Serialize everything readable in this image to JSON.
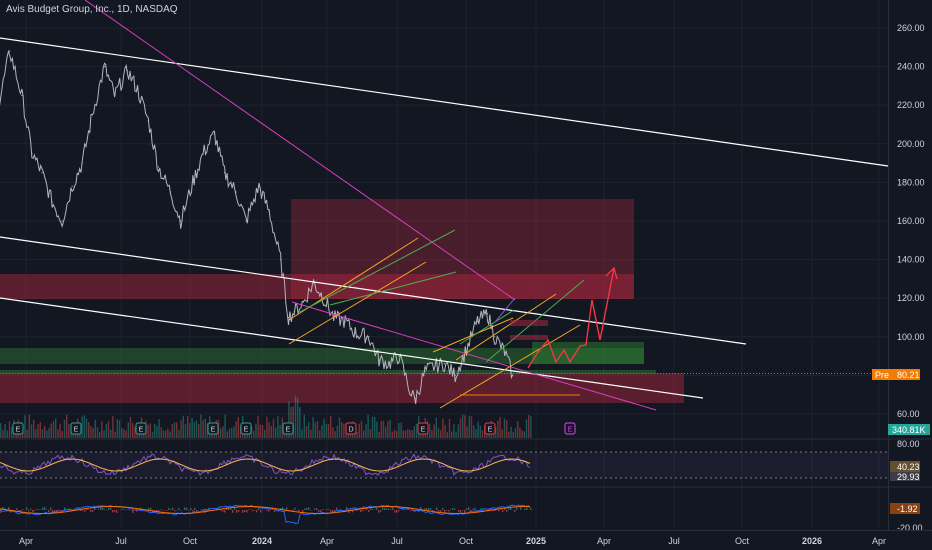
{
  "header": {
    "title": "Avis Budget Group, Inc., 1D, NASDAQ"
  },
  "chart_data": {
    "type": "line",
    "title": "Avis Budget Group, Inc., 1D, NASDAQ",
    "ylim": [
      50,
      265
    ],
    "y_ticks": [
      60,
      80,
      100,
      120,
      140,
      160,
      180,
      200,
      220,
      240,
      260
    ],
    "y_tick_labels": [
      "60.00",
      "80.00",
      "100.00",
      "120.00",
      "140.00",
      "160.00",
      "180.00",
      "200.00",
      "220.00",
      "240.00",
      "260.00"
    ],
    "x_tick_labels": [
      "Apr",
      "Jul",
      "Oct",
      "2024",
      "Apr",
      "Jul",
      "Oct",
      "2025",
      "Apr",
      "Jul",
      "Oct",
      "2026",
      "Apr"
    ],
    "series": [
      {
        "x": [
          "2023-01-02",
          "2023-01-20",
          "2023-02-06",
          "2023-02-20",
          "2023-03-06",
          "2023-03-20",
          "2023-04-03",
          "2023-04-17",
          "2023-05-01",
          "2023-05-15",
          "2023-06-01",
          "2023-06-15",
          "2023-07-03",
          "2023-07-17",
          "2023-08-01",
          "2023-08-15",
          "2023-09-01",
          "2023-09-15",
          "2023-10-02",
          "2023-10-16",
          "2023-11-01",
          "2023-11-15",
          "2023-12-01",
          "2023-12-15",
          "2024-01-02",
          "2024-01-16",
          "2024-02-01",
          "2024-02-12",
          "2024-02-20",
          "2024-03-04",
          "2024-03-18",
          "2024-04-01",
          "2024-04-15",
          "2024-05-01",
          "2024-05-15",
          "2024-06-03",
          "2024-06-17",
          "2024-07-01",
          "2024-07-15",
          "2024-08-01",
          "2024-08-07",
          "2024-08-20",
          "2024-09-03",
          "2024-09-16",
          "2024-10-01",
          "2024-10-15",
          "2024-11-01",
          "2024-11-15",
          "2024-11-25",
          "2024-12-09",
          "2024-12-20"
        ],
        "values": [
          215,
          248,
          225,
          195,
          185,
          170,
          160,
          178,
          190,
          215,
          240,
          225,
          238,
          228,
          212,
          188,
          175,
          160,
          180,
          195,
          205,
          185,
          175,
          160,
          178,
          165,
          140,
          110,
          113,
          118,
          128,
          120,
          110,
          108,
          102,
          100,
          88,
          86,
          90,
          70,
          68,
          82,
          85,
          86,
          80,
          92,
          108,
          112,
          100,
          92,
          80.21
        ]
      }
    ],
    "last_price_label": "Pre",
    "last_price": "80.21",
    "volume_label": "340.81K",
    "event_markers": [
      "E",
      "E",
      "E",
      "E",
      "E",
      "E",
      "D",
      "E",
      "E",
      "E",
      "E",
      "E"
    ],
    "event_marker_future": "E",
    "rsi": {
      "ticks": [
        "80.00"
      ],
      "value_label": "40.23",
      "second_label": "29.93",
      "levels": [
        70,
        30
      ]
    },
    "macd": {
      "ticks": [
        "-20.00"
      ],
      "value_label": "-1.92"
    },
    "grid": true,
    "colors": {
      "background": "#131722",
      "price_line": "#b2b5be",
      "trend_white": "#ffffff",
      "trend_magenta": "#d63fbf",
      "channel_orange": "#f5a623",
      "channel_green": "#4caf50",
      "zone_red": "#b2283f",
      "zone_green": "#2e7d32",
      "arrow": "#f23645",
      "rsi_line": "#7e57c2",
      "rsi_ma": "#ffb74d",
      "macd_line": "#2962ff",
      "macd_signal": "#ff6d00"
    }
  }
}
